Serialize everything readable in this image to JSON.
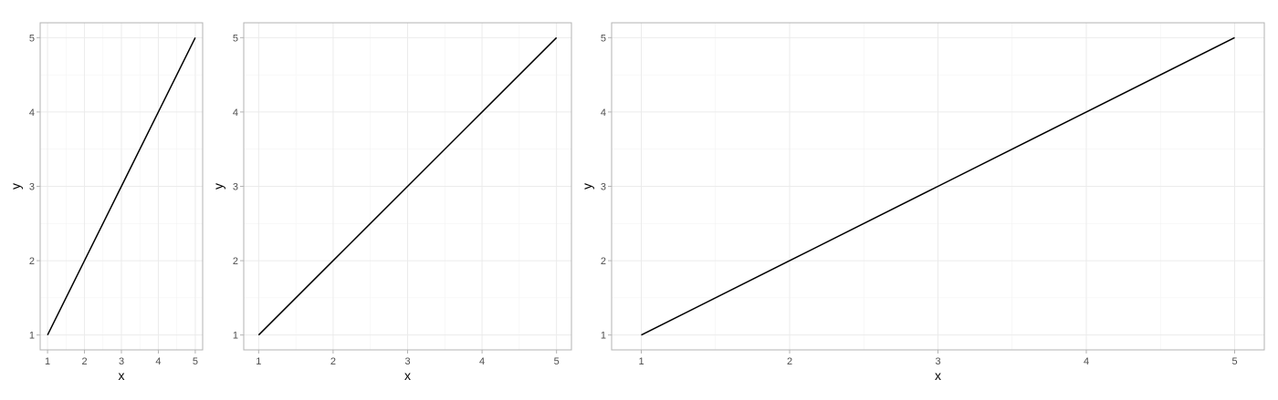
{
  "chart_data": [
    {
      "type": "line",
      "xlabel": "x",
      "ylabel": "y",
      "x": [
        1,
        2,
        3,
        4,
        5
      ],
      "series": [
        {
          "values": [
            1,
            2,
            3,
            4,
            5
          ]
        }
      ],
      "xlim": [
        0.8,
        5.2
      ],
      "ylim": [
        0.8,
        5.2
      ],
      "xticks": [
        1,
        2,
        3,
        4,
        5
      ],
      "yticks": [
        1,
        2,
        3,
        4,
        5
      ],
      "grid": true,
      "line_color": "#000000",
      "grid_color": "#ebebeb",
      "border_color": "#b3b3b3"
    },
    {
      "type": "line",
      "xlabel": "x",
      "ylabel": "y",
      "x": [
        1,
        2,
        3,
        4,
        5
      ],
      "series": [
        {
          "values": [
            1,
            2,
            3,
            4,
            5
          ]
        }
      ],
      "xlim": [
        0.8,
        5.2
      ],
      "ylim": [
        0.8,
        5.2
      ],
      "xticks": [
        1,
        2,
        3,
        4,
        5
      ],
      "yticks": [
        1,
        2,
        3,
        4,
        5
      ],
      "grid": true,
      "line_color": "#000000",
      "grid_color": "#ebebeb",
      "border_color": "#b3b3b3"
    },
    {
      "type": "line",
      "xlabel": "x",
      "ylabel": "y",
      "x": [
        1,
        2,
        3,
        4,
        5
      ],
      "series": [
        {
          "values": [
            1,
            2,
            3,
            4,
            5
          ]
        }
      ],
      "xlim": [
        0.8,
        5.2
      ],
      "ylim": [
        0.8,
        5.2
      ],
      "xticks": [
        1,
        2,
        3,
        4,
        5
      ],
      "yticks": [
        1,
        2,
        3,
        4,
        5
      ],
      "grid": true,
      "line_color": "#000000",
      "grid_color": "#ebebeb",
      "border_color": "#b3b3b3"
    }
  ]
}
